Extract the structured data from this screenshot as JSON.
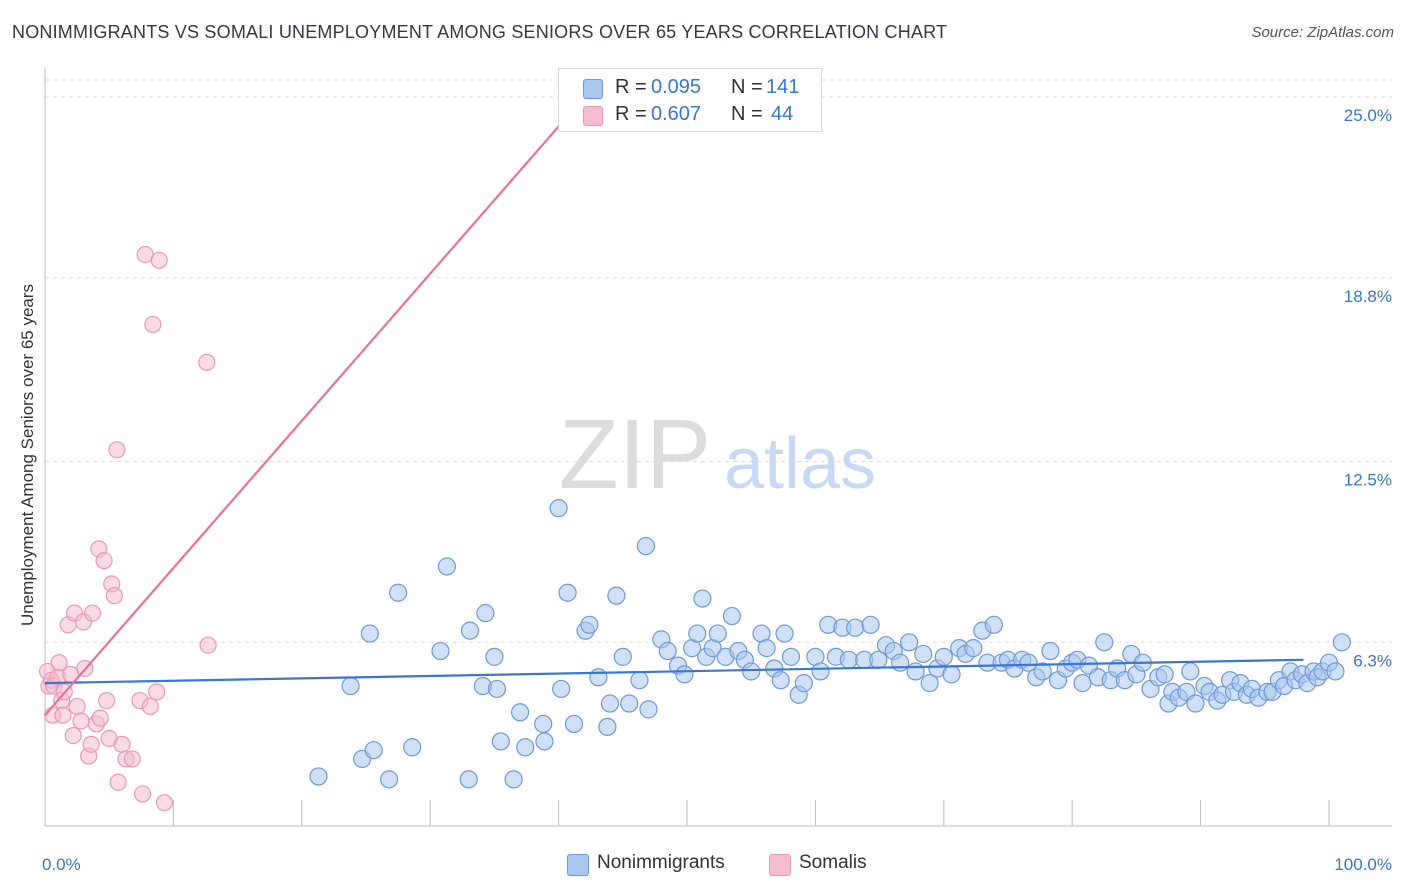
{
  "title": "NONIMMIGRANTS VS SOMALI UNEMPLOYMENT AMONG SENIORS OVER 65 YEARS CORRELATION CHART",
  "source": "Source: ZipAtlas.com",
  "watermark": {
    "zip": "ZIP",
    "atlas": "atlas"
  },
  "colors": {
    "blue": "#3a78d0",
    "blue_fill": "#a9c7ef",
    "pink": "#e8729a",
    "pink_fill": "#f6bcd0",
    "tick_label": "#3a76cc",
    "grid": "#dddddd"
  },
  "legend": {
    "r_label": "R =",
    "n_label": "N =",
    "rows": [
      {
        "r": "0.095",
        "n": "141",
        "color": "#a9c7ef"
      },
      {
        "r": "0.607",
        "n": "44",
        "color": "#f6bcd0"
      }
    ]
  },
  "bottom_legend": [
    {
      "label": "Nonimmigrants",
      "color": "#a9c7ef"
    },
    {
      "label": "Somalis",
      "color": "#f6bcd0"
    }
  ],
  "chart_data": {
    "type": "scatter",
    "title": "NONIMMIGRANTS VS SOMALI UNEMPLOYMENT AMONG SENIORS OVER 65 YEARS CORRELATION CHART",
    "xlabel": "",
    "ylabel": "Unemployment Among Seniors over 65 years",
    "xlim": [
      0,
      100
    ],
    "ylim": [
      0,
      25.0
    ],
    "x_tick_labels": [
      "0.0%",
      "100.0%"
    ],
    "y_ticks": [
      6.3,
      12.5,
      18.8,
      25.0
    ],
    "y_tick_labels": [
      "6.3%",
      "12.5%",
      "18.8%",
      "25.0%"
    ],
    "grid": true,
    "legend_position": "top-center",
    "series": [
      {
        "name": "Nonimmigrants",
        "color": "#3a78d0",
        "n": 141,
        "r": 0.095,
        "trend": {
          "x": [
            0,
            98
          ],
          "y": [
            4.9,
            5.7
          ]
        },
        "points": [
          [
            21.3,
            1.7
          ],
          [
            23.8,
            4.8
          ],
          [
            24.7,
            2.3
          ],
          [
            25.3,
            6.6
          ],
          [
            25.6,
            2.6
          ],
          [
            26.8,
            1.6
          ],
          [
            27.5,
            8.0
          ],
          [
            28.6,
            2.7
          ],
          [
            30.8,
            6.0
          ],
          [
            31.3,
            8.9
          ],
          [
            33.0,
            1.6
          ],
          [
            33.1,
            6.7
          ],
          [
            34.1,
            4.8
          ],
          [
            34.3,
            7.3
          ],
          [
            35.0,
            5.8
          ],
          [
            35.2,
            4.7
          ],
          [
            35.5,
            2.9
          ],
          [
            36.5,
            1.6
          ],
          [
            37.0,
            3.9
          ],
          [
            37.4,
            2.7
          ],
          [
            38.8,
            3.5
          ],
          [
            38.9,
            2.9
          ],
          [
            40.0,
            10.9
          ],
          [
            40.2,
            4.7
          ],
          [
            40.7,
            8.0
          ],
          [
            41.2,
            3.5
          ],
          [
            42.1,
            6.7
          ],
          [
            42.4,
            6.9
          ],
          [
            43.1,
            5.1
          ],
          [
            43.8,
            3.4
          ],
          [
            44.0,
            4.2
          ],
          [
            44.5,
            7.9
          ],
          [
            45.0,
            5.8
          ],
          [
            45.5,
            4.2
          ],
          [
            46.3,
            5.0
          ],
          [
            46.8,
            9.6
          ],
          [
            47.0,
            4.0
          ],
          [
            48.0,
            6.4
          ],
          [
            48.5,
            6.0
          ],
          [
            49.3,
            5.5
          ],
          [
            49.8,
            5.2
          ],
          [
            50.4,
            6.1
          ],
          [
            50.8,
            6.6
          ],
          [
            51.2,
            7.8
          ],
          [
            51.5,
            5.8
          ],
          [
            52.0,
            6.1
          ],
          [
            52.4,
            6.6
          ],
          [
            53.0,
            5.8
          ],
          [
            53.5,
            7.2
          ],
          [
            54.0,
            6.0
          ],
          [
            54.5,
            5.7
          ],
          [
            55.0,
            5.3
          ],
          [
            55.8,
            6.6
          ],
          [
            56.2,
            6.1
          ],
          [
            56.8,
            5.4
          ],
          [
            57.3,
            5.0
          ],
          [
            57.6,
            6.6
          ],
          [
            58.1,
            5.8
          ],
          [
            58.7,
            4.5
          ],
          [
            59.1,
            4.9
          ],
          [
            60.0,
            5.8
          ],
          [
            60.4,
            5.3
          ],
          [
            61.0,
            6.9
          ],
          [
            61.6,
            5.8
          ],
          [
            62.1,
            6.8
          ],
          [
            62.6,
            5.7
          ],
          [
            63.1,
            6.8
          ],
          [
            63.8,
            5.7
          ],
          [
            64.3,
            6.9
          ],
          [
            64.9,
            5.7
          ],
          [
            65.5,
            6.2
          ],
          [
            66.1,
            6.0
          ],
          [
            66.6,
            5.6
          ],
          [
            67.3,
            6.3
          ],
          [
            67.8,
            5.3
          ],
          [
            68.4,
            5.9
          ],
          [
            68.9,
            4.9
          ],
          [
            69.5,
            5.4
          ],
          [
            70.0,
            5.8
          ],
          [
            70.6,
            5.2
          ],
          [
            71.2,
            6.1
          ],
          [
            71.7,
            5.9
          ],
          [
            72.3,
            6.1
          ],
          [
            73.0,
            6.7
          ],
          [
            73.4,
            5.6
          ],
          [
            73.9,
            6.9
          ],
          [
            74.5,
            5.6
          ],
          [
            75.0,
            5.7
          ],
          [
            75.5,
            5.4
          ],
          [
            76.1,
            5.7
          ],
          [
            76.6,
            5.6
          ],
          [
            77.2,
            5.1
          ],
          [
            77.7,
            5.3
          ],
          [
            78.3,
            6.0
          ],
          [
            78.9,
            5.0
          ],
          [
            79.5,
            5.4
          ],
          [
            80.0,
            5.6
          ],
          [
            80.4,
            5.7
          ],
          [
            80.8,
            4.9
          ],
          [
            81.3,
            5.5
          ],
          [
            82.0,
            5.1
          ],
          [
            82.5,
            6.3
          ],
          [
            83.0,
            5.0
          ],
          [
            83.5,
            5.4
          ],
          [
            84.1,
            5.0
          ],
          [
            84.6,
            5.9
          ],
          [
            85.0,
            5.2
          ],
          [
            85.5,
            5.6
          ],
          [
            86.1,
            4.7
          ],
          [
            86.7,
            5.1
          ],
          [
            87.2,
            5.2
          ],
          [
            87.5,
            4.2
          ],
          [
            87.8,
            4.6
          ],
          [
            88.3,
            4.4
          ],
          [
            88.9,
            4.6
          ],
          [
            89.2,
            5.3
          ],
          [
            89.6,
            4.2
          ],
          [
            90.3,
            4.8
          ],
          [
            90.7,
            4.6
          ],
          [
            91.3,
            4.3
          ],
          [
            91.7,
            4.5
          ],
          [
            92.3,
            5.0
          ],
          [
            92.6,
            4.6
          ],
          [
            93.1,
            4.9
          ],
          [
            93.6,
            4.5
          ],
          [
            94.0,
            4.7
          ],
          [
            94.5,
            4.4
          ],
          [
            95.2,
            4.6
          ],
          [
            95.6,
            4.6
          ],
          [
            96.1,
            5.0
          ],
          [
            96.5,
            4.8
          ],
          [
            97.0,
            5.3
          ],
          [
            97.4,
            5.0
          ],
          [
            97.9,
            5.2
          ],
          [
            98.3,
            4.9
          ],
          [
            98.8,
            5.3
          ],
          [
            99.1,
            5.1
          ],
          [
            99.5,
            5.3
          ],
          [
            100.0,
            5.6
          ],
          [
            100.5,
            5.3
          ],
          [
            101.0,
            6.3
          ]
        ]
      },
      {
        "name": "Somalis",
        "color": "#e8729a",
        "n": 44,
        "r": 0.607,
        "trend": {
          "x": [
            0,
            42.0
          ],
          "y": [
            3.8,
            25.0
          ]
        },
        "points": [
          [
            0.2,
            5.3
          ],
          [
            0.3,
            4.8
          ],
          [
            0.5,
            5.0
          ],
          [
            0.6,
            3.8
          ],
          [
            0.7,
            4.8
          ],
          [
            1.0,
            5.1
          ],
          [
            1.1,
            5.6
          ],
          [
            1.3,
            4.3
          ],
          [
            1.4,
            3.8
          ],
          [
            1.5,
            4.6
          ],
          [
            1.8,
            6.9
          ],
          [
            2.0,
            5.2
          ],
          [
            2.2,
            3.1
          ],
          [
            2.3,
            7.3
          ],
          [
            2.5,
            4.1
          ],
          [
            2.8,
            3.6
          ],
          [
            3.0,
            7.0
          ],
          [
            3.1,
            5.4
          ],
          [
            3.4,
            2.4
          ],
          [
            3.6,
            2.8
          ],
          [
            3.7,
            7.3
          ],
          [
            4.0,
            3.5
          ],
          [
            4.2,
            9.5
          ],
          [
            4.3,
            3.7
          ],
          [
            4.6,
            9.1
          ],
          [
            4.8,
            4.3
          ],
          [
            5.0,
            3.0
          ],
          [
            5.2,
            8.3
          ],
          [
            5.4,
            7.9
          ],
          [
            5.6,
            12.9
          ],
          [
            5.7,
            1.5
          ],
          [
            6.0,
            2.8
          ],
          [
            6.3,
            2.3
          ],
          [
            6.8,
            2.3
          ],
          [
            7.4,
            4.3
          ],
          [
            7.6,
            1.1
          ],
          [
            7.8,
            19.6
          ],
          [
            8.2,
            4.1
          ],
          [
            8.4,
            17.2
          ],
          [
            8.7,
            4.6
          ],
          [
            8.9,
            19.4
          ],
          [
            9.3,
            0.8
          ],
          [
            12.6,
            15.9
          ],
          [
            12.7,
            6.2
          ]
        ]
      }
    ]
  }
}
